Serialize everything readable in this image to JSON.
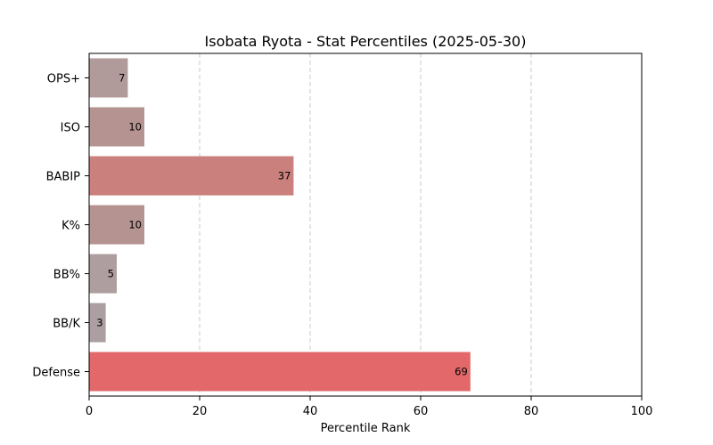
{
  "chart_data": {
    "type": "bar",
    "orientation": "horizontal",
    "title": "Isobata Ryota - Stat Percentiles (2025-05-30)",
    "xlabel": "Percentile Rank",
    "ylabel": "",
    "xlim": [
      0,
      100
    ],
    "xticks": [
      0,
      20,
      40,
      60,
      80,
      100
    ],
    "grid": "x-dashed",
    "categories": [
      "OPS+",
      "ISO",
      "BABIP",
      "K%",
      "BB%",
      "BB/K",
      "Defense"
    ],
    "values": [
      7,
      10,
      37,
      10,
      5,
      3,
      69
    ],
    "colors": [
      "#b19a9a",
      "#b59391",
      "#ca817d",
      "#b59391",
      "#af9e9f",
      "#ab9fa1",
      "#e2686a"
    ]
  }
}
